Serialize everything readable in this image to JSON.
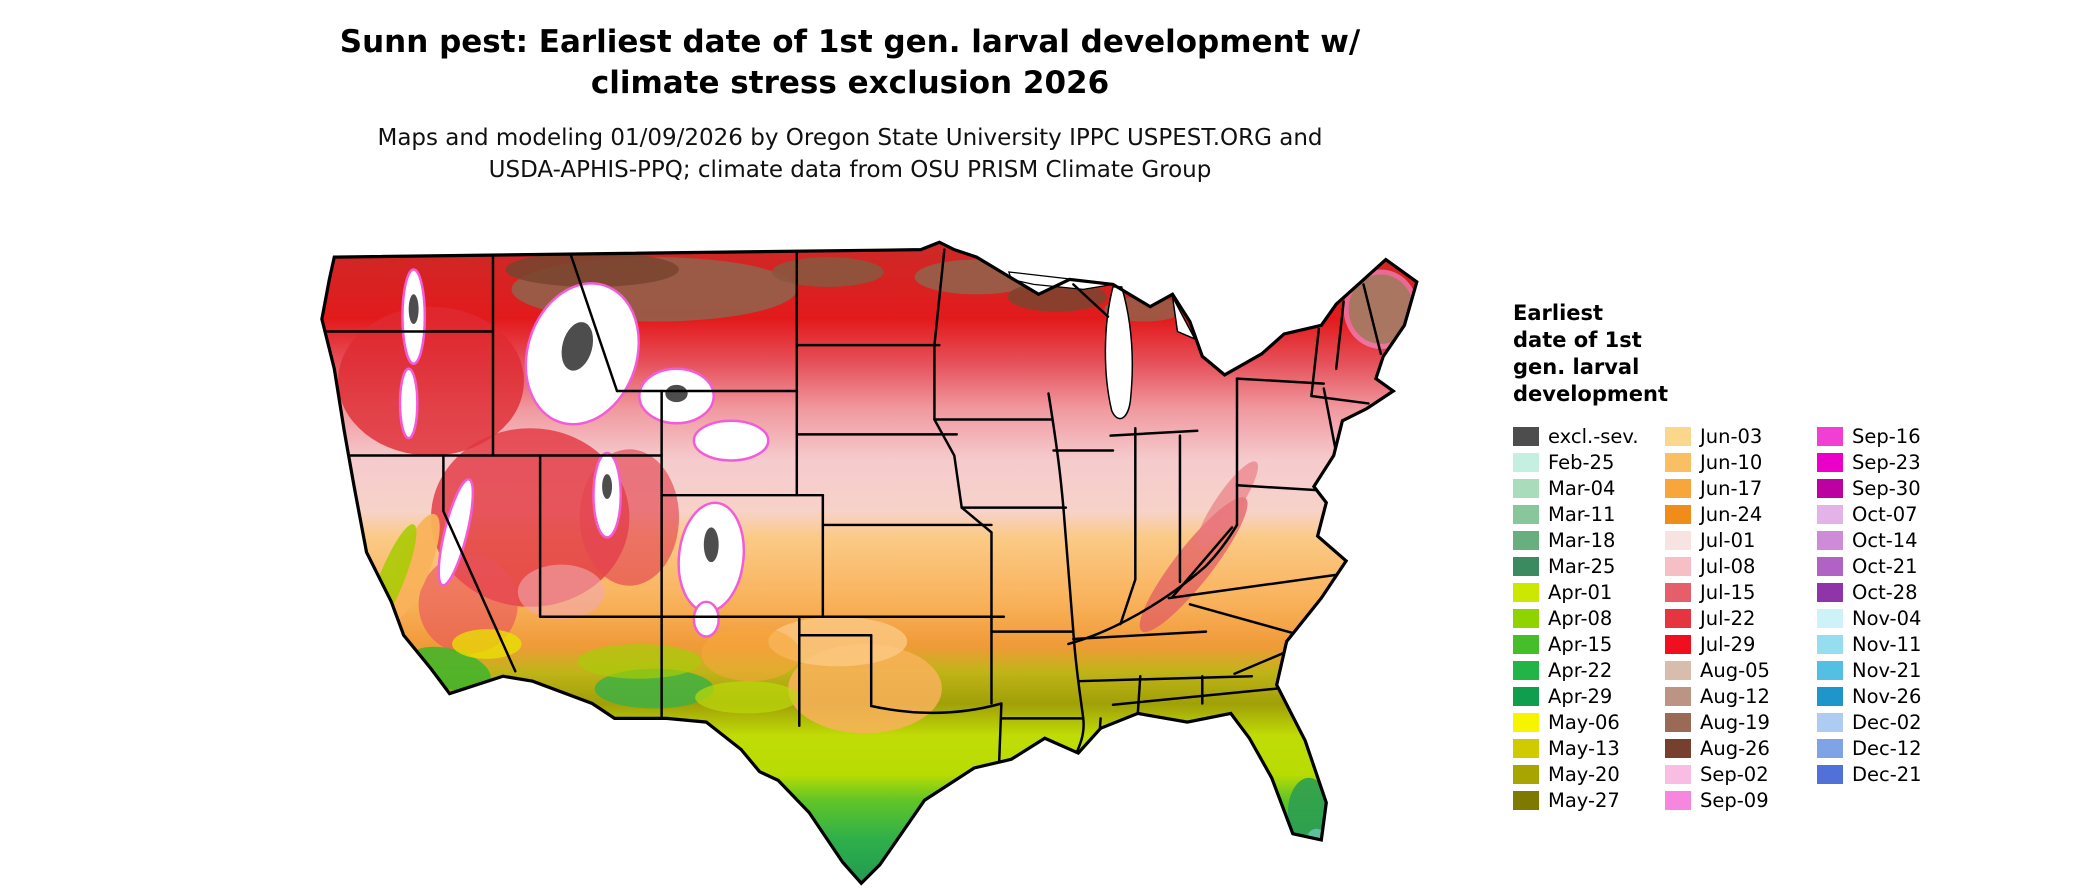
{
  "header": {
    "title_line1": "Sunn pest: Earliest date of 1st gen. larval development w/",
    "title_line2": "climate stress exclusion 2026",
    "subtitle_line1": "Maps and modeling 01/09/2026 by Oregon State University IPPC USPEST.ORG and",
    "subtitle_line2": "USDA-APHIS-PPQ; climate data from OSU PRISM Climate Group"
  },
  "legend": {
    "title_lines": [
      "Earliest",
      "date of 1st",
      "gen. larval",
      "development"
    ],
    "columns": [
      {
        "items": [
          {
            "label": "excl.-sev.",
            "color": "#4D4D4D"
          },
          {
            "label": "Feb-25",
            "color": "#C5EFE0"
          },
          {
            "label": "Mar-04",
            "color": "#A8DCBB"
          },
          {
            "label": "Mar-11",
            "color": "#88C69C"
          },
          {
            "label": "Mar-18",
            "color": "#67AF7F"
          },
          {
            "label": "Mar-25",
            "color": "#3C8A60"
          },
          {
            "label": "Apr-01",
            "color": "#CDE800"
          },
          {
            "label": "Apr-08",
            "color": "#8FD400"
          },
          {
            "label": "Apr-15",
            "color": "#46BE2A"
          },
          {
            "label": "Apr-22",
            "color": "#22B446"
          },
          {
            "label": "Apr-29",
            "color": "#0F9E4E"
          },
          {
            "label": "May-06",
            "color": "#F7F400"
          },
          {
            "label": "May-13",
            "color": "#CFCB00"
          },
          {
            "label": "May-20",
            "color": "#A8A400"
          },
          {
            "label": "May-27",
            "color": "#7E7A00"
          }
        ]
      },
      {
        "items": [
          {
            "label": "Jun-03",
            "color": "#FBD78E"
          },
          {
            "label": "Jun-10",
            "color": "#FABF63"
          },
          {
            "label": "Jun-17",
            "color": "#F7A63C"
          },
          {
            "label": "Jun-24",
            "color": "#EF8C1A"
          },
          {
            "label": "Jul-01",
            "color": "#F8E3E3"
          },
          {
            "label": "Jul-08",
            "color": "#F5BFC5"
          },
          {
            "label": "Jul-15",
            "color": "#E55F6B"
          },
          {
            "label": "Jul-22",
            "color": "#E43540"
          },
          {
            "label": "Jul-29",
            "color": "#F00F1E"
          },
          {
            "label": "Aug-05",
            "color": "#D8BCAC"
          },
          {
            "label": "Aug-12",
            "color": "#BC9484"
          },
          {
            "label": "Aug-19",
            "color": "#9A6A56"
          },
          {
            "label": "Aug-26",
            "color": "#77402E"
          },
          {
            "label": "Sep-02",
            "color": "#F9BDE4"
          },
          {
            "label": "Sep-09",
            "color": "#F787DE"
          }
        ]
      },
      {
        "items": [
          {
            "label": "Sep-16",
            "color": "#F23FD3"
          },
          {
            "label": "Sep-23",
            "color": "#EA00C8"
          },
          {
            "label": "Sep-30",
            "color": "#BC00A2"
          },
          {
            "label": "Oct-07",
            "color": "#E3B3E8"
          },
          {
            "label": "Oct-14",
            "color": "#CD8BD8"
          },
          {
            "label": "Oct-21",
            "color": "#B163C5"
          },
          {
            "label": "Oct-28",
            "color": "#8F35A9"
          },
          {
            "label": "Nov-04",
            "color": "#CDF2F8"
          },
          {
            "label": "Nov-11",
            "color": "#97DDF0"
          },
          {
            "label": "Nov-21",
            "color": "#52BFE3"
          },
          {
            "label": "Nov-26",
            "color": "#1E96CB"
          },
          {
            "label": "Dec-02",
            "color": "#AECBF2"
          },
          {
            "label": "Dec-12",
            "color": "#7FA3E6"
          },
          {
            "label": "Dec-21",
            "color": "#5271D8"
          }
        ]
      }
    ]
  }
}
